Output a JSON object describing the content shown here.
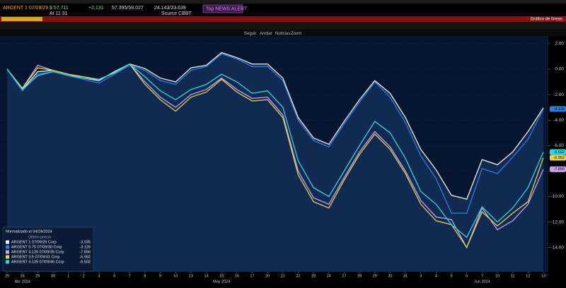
{
  "header": {
    "security": "ARGENT 1 07/09/29",
    "price": "$ 57.711",
    "change": "+2.131",
    "bid_ask": "57.395/58.027",
    "yield": "24.143/23.639",
    "time": "At 11:31",
    "source": "Source CBBT",
    "alert": "Top NEWS ALERT",
    "panel": "Gráfico de líneas"
  },
  "toolbar": [
    "Seguir",
    "Anotar",
    "Noticias",
    "Zoom"
  ],
  "chart_data": {
    "type": "line",
    "legend_title": "Normalizado al 04/24/2024",
    "legend_subtitle": "Último precio",
    "categories": [
      "25",
      "26",
      "29",
      "30",
      "1",
      "2",
      "3",
      "6",
      "7",
      "8",
      "9",
      "10",
      "13",
      "14",
      "15",
      "16",
      "17",
      "20",
      "21",
      "22",
      "23",
      "24",
      "27",
      "28",
      "29",
      "30",
      "31",
      "3",
      "4",
      "5",
      "6",
      "7",
      "10",
      "11",
      "12",
      "13"
    ],
    "months": [
      "Abr 2024",
      "May 2024",
      "Jun 2024"
    ],
    "series": [
      {
        "name": "ARGENT 1 07/09/29 Corp",
        "color": "#f2f2f2",
        "values": [
          0,
          -1.6,
          -0.2,
          -0.1,
          -0.4,
          -0.7,
          -0.9,
          -0.2,
          0.4,
          0.05,
          -0.7,
          -1.0,
          0.1,
          0.3,
          1.3,
          0.9,
          0.4,
          0.4,
          -0.7,
          -3.8,
          -5.4,
          -5.9,
          -4.1,
          -2.4,
          -0.9,
          -1.9,
          -3.8,
          -6.3,
          -7.9,
          -9.9,
          -10.2,
          -7.1,
          -7.5,
          -6.5,
          -4.9,
          -3.035
        ]
      },
      {
        "name": "ARGENT 0.75 07/09/30 Corp",
        "color": "#2f7de1",
        "values": [
          0,
          -1.7,
          -0.4,
          -0.2,
          -0.5,
          -0.8,
          -1.1,
          -0.4,
          0.3,
          -0.1,
          -0.9,
          -1.2,
          -0.1,
          0.2,
          1.2,
          0.8,
          0.2,
          0.2,
          -0.9,
          -4.0,
          -5.6,
          -6.1,
          -4.3,
          -2.6,
          -1.0,
          -2.2,
          -4.2,
          -6.8,
          -8.6,
          -11.3,
          -11.3,
          -7.8,
          -8.2,
          -6.9,
          -5.5,
          -3.126
        ]
      },
      {
        "name": "ARGENT 4.125 07/09/35 Corp",
        "color": "#c9a3ef",
        "values": [
          0,
          -1.5,
          0.3,
          -0.1,
          -0.4,
          -0.7,
          -0.8,
          -0.3,
          0.4,
          -1.0,
          -2.2,
          -3.0,
          -2.0,
          -1.6,
          -0.7,
          -1.6,
          -2.3,
          -2.2,
          -3.6,
          -8.0,
          -10.1,
          -10.6,
          -8.5,
          -6.5,
          -4.9,
          -6.1,
          -8.0,
          -10.3,
          -11.6,
          -11.8,
          -14.0,
          -10.9,
          -12.6,
          -11.9,
          -10.6,
          -7.856
        ]
      },
      {
        "name": "ARGENT 3.5 07/09/41 Corp",
        "color": "#e8d24a",
        "values": [
          0,
          -1.5,
          0.1,
          -0.1,
          -0.4,
          -0.6,
          -0.8,
          -0.3,
          0.4,
          -1.2,
          -2.4,
          -3.3,
          -2.2,
          -1.8,
          -0.8,
          -1.8,
          -2.5,
          -2.4,
          -3.8,
          -8.3,
          -10.4,
          -10.9,
          -8.7,
          -6.7,
          -5.1,
          -6.3,
          -8.2,
          -10.6,
          -11.9,
          -12.2,
          -14.0,
          -11.2,
          -12.3,
          -11.3,
          -10.4,
          -6.952
        ]
      },
      {
        "name": "ARGENT 4.125 07/09/46 Corp",
        "color": "#2fd6df",
        "values": [
          0,
          -1.6,
          -0.5,
          -0.2,
          -0.5,
          -0.7,
          -0.8,
          -0.3,
          0.4,
          -0.6,
          -1.7,
          -2.4,
          -1.6,
          -1.2,
          -0.4,
          -1.0,
          -1.9,
          -1.7,
          -3.0,
          -7.2,
          -9.3,
          -10.0,
          -8.0,
          -6.0,
          -4.1,
          -5.0,
          -7.0,
          -9.6,
          -10.6,
          -12.2,
          -13.2,
          -10.8,
          -12.0,
          -10.9,
          -9.3,
          -6.502
        ]
      }
    ],
    "ylim": [
      -15.9,
      2.6
    ],
    "yticks": [
      {
        "value": 2,
        "label": "2.00"
      },
      {
        "value": 0,
        "label": "0.00"
      },
      {
        "value": -2,
        "label": "-2.00"
      },
      {
        "value": -4,
        "label": "-4.00"
      },
      {
        "value": -6,
        "label": "-6.00"
      },
      {
        "value": -8,
        "label": "-8.00"
      },
      {
        "value": -10,
        "label": "-10.00"
      },
      {
        "value": -12,
        "label": "-12.00"
      },
      {
        "value": -14,
        "label": "-14.00"
      }
    ],
    "grid": true
  }
}
